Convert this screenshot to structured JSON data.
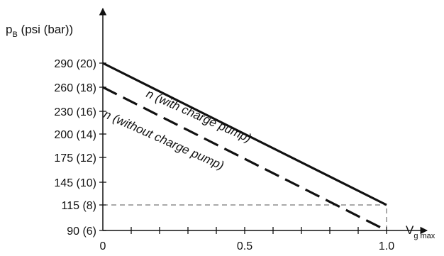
{
  "chart_data": {
    "type": "line",
    "ylabel": {
      "main": "p",
      "sub": "B",
      "rest": " (psi (bar))"
    },
    "xlabel": {
      "main": "V",
      "sub": "g max"
    },
    "xlim": [
      0,
      1.0
    ],
    "y_ticks": [
      {
        "value": 90,
        "label": "90 (6)"
      },
      {
        "value": 115,
        "label": "115 (8)"
      },
      {
        "value": 145,
        "label": "145 (10)"
      },
      {
        "value": 175,
        "label": "175 (12)"
      },
      {
        "value": 200,
        "label": "200 (14)"
      },
      {
        "value": 230,
        "label": "230 (16)"
      },
      {
        "value": 260,
        "label": "260 (18)"
      },
      {
        "value": 290,
        "label": "290 (20)"
      }
    ],
    "x_ticks": [
      {
        "value": 0,
        "label": "0"
      },
      {
        "value": 0.5,
        "label": "0.5"
      },
      {
        "value": 1.0,
        "label": "1.0"
      }
    ],
    "series": [
      {
        "name": "n (with charge pump)",
        "style": "solid",
        "x": [
          0,
          1.0
        ],
        "y": [
          290,
          115
        ]
      },
      {
        "name": "n (without charge pump)",
        "style": "dashed",
        "x": [
          0,
          1.0
        ],
        "y": [
          260,
          90
        ]
      }
    ],
    "reference_lines": [
      {
        "orientation": "horizontal",
        "y": 115,
        "x_range": [
          0,
          1.0
        ],
        "style": "thin-dashed"
      },
      {
        "orientation": "vertical",
        "x": 1.0,
        "y_range": [
          90,
          115
        ],
        "style": "thin-dashed"
      }
    ],
    "colors": {
      "line": "#111111",
      "reference": "#555555"
    }
  }
}
